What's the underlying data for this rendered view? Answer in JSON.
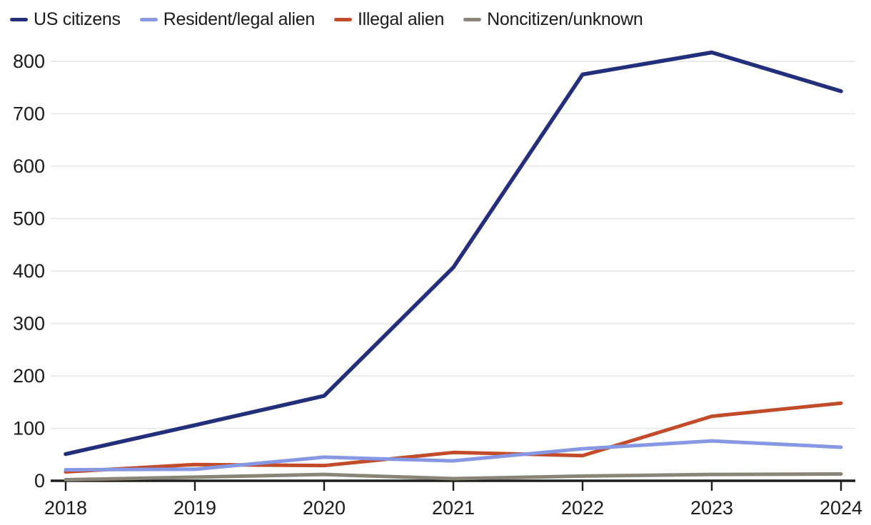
{
  "legend": {
    "items": [
      {
        "label": "US citizens",
        "color": "#242f7c"
      },
      {
        "label": "Resident/legal alien",
        "color": "#8697e4"
      },
      {
        "label": "Illegal alien",
        "color": "#c24b2a"
      },
      {
        "label": "Noncitizen/unknown",
        "color": "#8b8478"
      }
    ]
  },
  "chart_data": {
    "type": "line",
    "title": "",
    "xlabel": "",
    "ylabel": "",
    "x": [
      "2018",
      "2019",
      "2020",
      "2021",
      "2022",
      "2023",
      "2024"
    ],
    "series": [
      {
        "name": "US citizens",
        "color": "#242f7c",
        "values": [
          51,
          106,
          162,
          407,
          775,
          817,
          743
        ]
      },
      {
        "name": "Resident/legal alien",
        "color": "#8697e4",
        "values": [
          21,
          22,
          45,
          38,
          61,
          76,
          64
        ]
      },
      {
        "name": "Illegal alien",
        "color": "#c24b2a",
        "values": [
          17,
          31,
          29,
          54,
          48,
          123,
          148
        ]
      },
      {
        "name": "Noncitizen/unknown",
        "color": "#8b8478",
        "values": [
          2,
          7,
          12,
          4,
          9,
          12,
          13
        ]
      }
    ],
    "yticks": [
      0,
      100,
      200,
      300,
      400,
      500,
      600,
      700,
      800
    ],
    "ylim": [
      0,
      800
    ],
    "grid": "horizontal",
    "legend_position": "top-left"
  },
  "colors": {
    "grid": "#e8e8e8",
    "axis": "#1c1c1c",
    "text": "#1b1b1b",
    "background": "#ffffff"
  }
}
